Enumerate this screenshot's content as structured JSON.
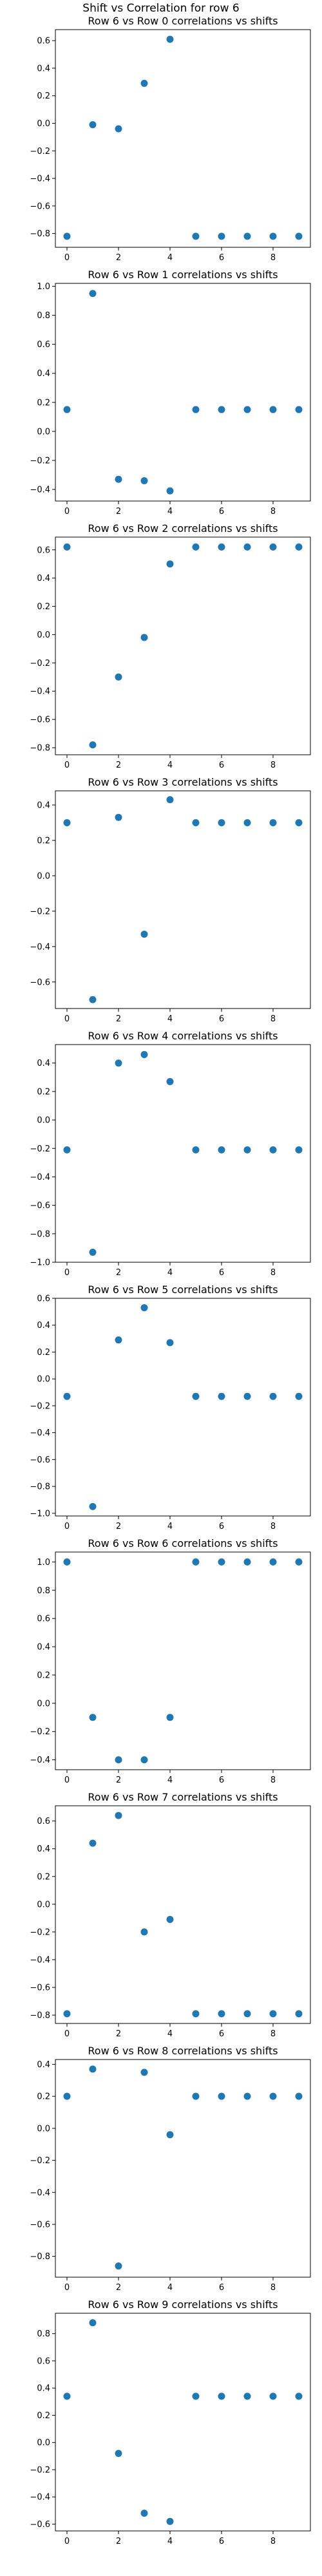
{
  "suptitle": "Shift vs Correlation for row 6",
  "colors": {
    "marker": "#1f77b4",
    "axes": "#000000",
    "background": "#ffffff"
  },
  "chart_data": [
    {
      "type": "scatter",
      "title": "Row 6 vs Row 0 correlations vs shifts",
      "x": [
        0,
        1,
        2,
        3,
        4,
        5,
        6,
        7,
        8,
        9
      ],
      "y": [
        -0.82,
        -0.01,
        -0.04,
        0.29,
        0.61,
        -0.82,
        -0.82,
        -0.82,
        -0.82,
        -0.82
      ],
      "xlim": [
        -0.45,
        9.45
      ],
      "ylim": [
        -0.9,
        0.68
      ],
      "xticks": [
        0,
        2,
        4,
        6,
        8
      ],
      "yticks": [
        -0.8,
        -0.6,
        -0.4,
        -0.2,
        0.0,
        0.2,
        0.4,
        0.6
      ],
      "xticklabels": [
        "0",
        "2",
        "4",
        "6",
        "8"
      ],
      "yticklabels": [
        "−0.8",
        "−0.6",
        "−0.4",
        "−0.2",
        "0.0",
        "0.2",
        "0.4",
        "0.6"
      ]
    },
    {
      "type": "scatter",
      "title": "Row 6 vs Row 1 correlations vs shifts",
      "x": [
        0,
        1,
        2,
        3,
        4,
        5,
        6,
        7,
        8,
        9
      ],
      "y": [
        0.15,
        0.95,
        -0.33,
        -0.34,
        -0.41,
        0.15,
        0.15,
        0.15,
        0.15,
        0.15
      ],
      "xlim": [
        -0.45,
        9.45
      ],
      "ylim": [
        -0.48,
        1.02
      ],
      "xticks": [
        0,
        2,
        4,
        6,
        8
      ],
      "yticks": [
        -0.4,
        -0.2,
        0.0,
        0.2,
        0.4,
        0.6,
        0.8,
        1.0
      ],
      "xticklabels": [
        "0",
        "2",
        "4",
        "6",
        "8"
      ],
      "yticklabels": [
        "−0.4",
        "−0.2",
        "0.0",
        "0.2",
        "0.4",
        "0.6",
        "0.8",
        "1.0"
      ]
    },
    {
      "type": "scatter",
      "title": "Row 6 vs Row 2 correlations vs shifts",
      "x": [
        0,
        1,
        2,
        3,
        4,
        5,
        6,
        7,
        8,
        9
      ],
      "y": [
        0.62,
        -0.78,
        -0.3,
        -0.02,
        0.5,
        0.62,
        0.62,
        0.62,
        0.62,
        0.62
      ],
      "xlim": [
        -0.45,
        9.45
      ],
      "ylim": [
        -0.85,
        0.69
      ],
      "xticks": [
        0,
        2,
        4,
        6,
        8
      ],
      "yticks": [
        -0.8,
        -0.6,
        -0.4,
        -0.2,
        0.0,
        0.2,
        0.4,
        0.6
      ],
      "xticklabels": [
        "0",
        "2",
        "4",
        "6",
        "8"
      ],
      "yticklabels": [
        "−0.8",
        "−0.6",
        "−0.4",
        "−0.2",
        "0.0",
        "0.2",
        "0.4",
        "0.6"
      ]
    },
    {
      "type": "scatter",
      "title": "Row 6 vs Row 3 correlations vs shifts",
      "x": [
        0,
        1,
        2,
        3,
        4,
        5,
        6,
        7,
        8,
        9
      ],
      "y": [
        0.3,
        -0.7,
        0.33,
        -0.33,
        0.43,
        0.3,
        0.3,
        0.3,
        0.3,
        0.3
      ],
      "xlim": [
        -0.45,
        9.45
      ],
      "ylim": [
        -0.75,
        0.48
      ],
      "xticks": [
        0,
        2,
        4,
        6,
        8
      ],
      "yticks": [
        -0.6,
        -0.4,
        -0.2,
        0.0,
        0.2,
        0.4
      ],
      "xticklabels": [
        "0",
        "2",
        "4",
        "6",
        "8"
      ],
      "yticklabels": [
        "−0.6",
        "−0.4",
        "−0.2",
        "0.0",
        "0.2",
        "0.4"
      ]
    },
    {
      "type": "scatter",
      "title": "Row 6 vs Row 4 correlations vs shifts",
      "x": [
        0,
        1,
        2,
        3,
        4,
        5,
        6,
        7,
        8,
        9
      ],
      "y": [
        -0.21,
        -0.93,
        0.4,
        0.46,
        0.27,
        -0.21,
        -0.21,
        -0.21,
        -0.21,
        -0.21
      ],
      "xlim": [
        -0.45,
        9.45
      ],
      "ylim": [
        -1.0,
        0.53
      ],
      "xticks": [
        0,
        2,
        4,
        6,
        8
      ],
      "yticks": [
        -1.0,
        -0.8,
        -0.6,
        -0.4,
        -0.2,
        0.0,
        0.2,
        0.4
      ],
      "xticklabels": [
        "0",
        "2",
        "4",
        "6",
        "8"
      ],
      "yticklabels": [
        "−1.0",
        "−0.8",
        "−0.6",
        "−0.4",
        "−0.2",
        "0.0",
        "0.2",
        "0.4"
      ]
    },
    {
      "type": "scatter",
      "title": "Row 6 vs Row 5 correlations vs shifts",
      "x": [
        0,
        1,
        2,
        3,
        4,
        5,
        6,
        7,
        8,
        9
      ],
      "y": [
        -0.13,
        -0.95,
        0.29,
        0.53,
        0.27,
        -0.13,
        -0.13,
        -0.13,
        -0.13,
        -0.13
      ],
      "xlim": [
        -0.45,
        9.45
      ],
      "ylim": [
        -1.02,
        0.6
      ],
      "xticks": [
        0,
        2,
        4,
        6,
        8
      ],
      "yticks": [
        -1.0,
        -0.8,
        -0.6,
        -0.4,
        -0.2,
        0.0,
        0.2,
        0.4,
        0.6
      ],
      "xticklabels": [
        "0",
        "2",
        "4",
        "6",
        "8"
      ],
      "yticklabels": [
        "−1.0",
        "−0.8",
        "−0.6",
        "−0.4",
        "−0.2",
        "0.0",
        "0.2",
        "0.4",
        "0.6"
      ]
    },
    {
      "type": "scatter",
      "title": "Row 6 vs Row 6 correlations vs shifts",
      "x": [
        0,
        1,
        2,
        3,
        4,
        5,
        6,
        7,
        8,
        9
      ],
      "y": [
        1.0,
        -0.1,
        -0.4,
        -0.4,
        -0.1,
        1.0,
        1.0,
        1.0,
        1.0,
        1.0
      ],
      "xlim": [
        -0.45,
        9.45
      ],
      "ylim": [
        -0.47,
        1.07
      ],
      "xticks": [
        0,
        2,
        4,
        6,
        8
      ],
      "yticks": [
        -0.4,
        -0.2,
        0.0,
        0.2,
        0.4,
        0.6,
        0.8,
        1.0
      ],
      "xticklabels": [
        "0",
        "2",
        "4",
        "6",
        "8"
      ],
      "yticklabels": [
        "−0.4",
        "−0.2",
        "0.0",
        "0.2",
        "0.4",
        "0.6",
        "0.8",
        "1.0"
      ]
    },
    {
      "type": "scatter",
      "title": "Row 6 vs Row 7 correlations vs shifts",
      "x": [
        0,
        1,
        2,
        3,
        4,
        5,
        6,
        7,
        8,
        9
      ],
      "y": [
        -0.79,
        0.44,
        0.64,
        -0.2,
        -0.11,
        -0.79,
        -0.79,
        -0.79,
        -0.79,
        -0.79
      ],
      "xlim": [
        -0.45,
        9.45
      ],
      "ylim": [
        -0.86,
        0.71
      ],
      "xticks": [
        0,
        2,
        4,
        6,
        8
      ],
      "yticks": [
        -0.8,
        -0.6,
        -0.4,
        -0.2,
        0.0,
        0.2,
        0.4,
        0.6
      ],
      "xticklabels": [
        "0",
        "2",
        "4",
        "6",
        "8"
      ],
      "yticklabels": [
        "−0.8",
        "−0.6",
        "−0.4",
        "−0.2",
        "0.0",
        "0.2",
        "0.4",
        "0.6"
      ]
    },
    {
      "type": "scatter",
      "title": "Row 6 vs Row 8 correlations vs shifts",
      "x": [
        0,
        1,
        2,
        3,
        4,
        5,
        6,
        7,
        8,
        9
      ],
      "y": [
        0.2,
        0.37,
        -0.86,
        0.35,
        -0.04,
        0.2,
        0.2,
        0.2,
        0.2,
        0.2
      ],
      "xlim": [
        -0.45,
        9.45
      ],
      "ylim": [
        -0.93,
        0.43
      ],
      "xticks": [
        0,
        2,
        4,
        6,
        8
      ],
      "yticks": [
        -0.8,
        -0.6,
        -0.4,
        -0.2,
        0.0,
        0.2,
        0.4
      ],
      "xticklabels": [
        "0",
        "2",
        "4",
        "6",
        "8"
      ],
      "yticklabels": [
        "−0.8",
        "−0.6",
        "−0.4",
        "−0.2",
        "0.0",
        "0.2",
        "0.4"
      ]
    },
    {
      "type": "scatter",
      "title": "Row 6 vs Row 9 correlations vs shifts",
      "x": [
        0,
        1,
        2,
        3,
        4,
        5,
        6,
        7,
        8,
        9
      ],
      "y": [
        0.34,
        0.88,
        -0.08,
        -0.52,
        -0.58,
        0.34,
        0.34,
        0.34,
        0.34,
        0.34
      ],
      "xlim": [
        -0.45,
        9.45
      ],
      "ylim": [
        -0.65,
        0.95
      ],
      "xticks": [
        0,
        2,
        4,
        6,
        8
      ],
      "yticks": [
        -0.6,
        -0.4,
        -0.2,
        0.0,
        0.2,
        0.4,
        0.6,
        0.8
      ],
      "xticklabels": [
        "0",
        "2",
        "4",
        "6",
        "8"
      ],
      "yticklabels": [
        "−0.6",
        "−0.4",
        "−0.2",
        "0.0",
        "0.2",
        "0.4",
        "0.6",
        "0.8"
      ]
    }
  ]
}
